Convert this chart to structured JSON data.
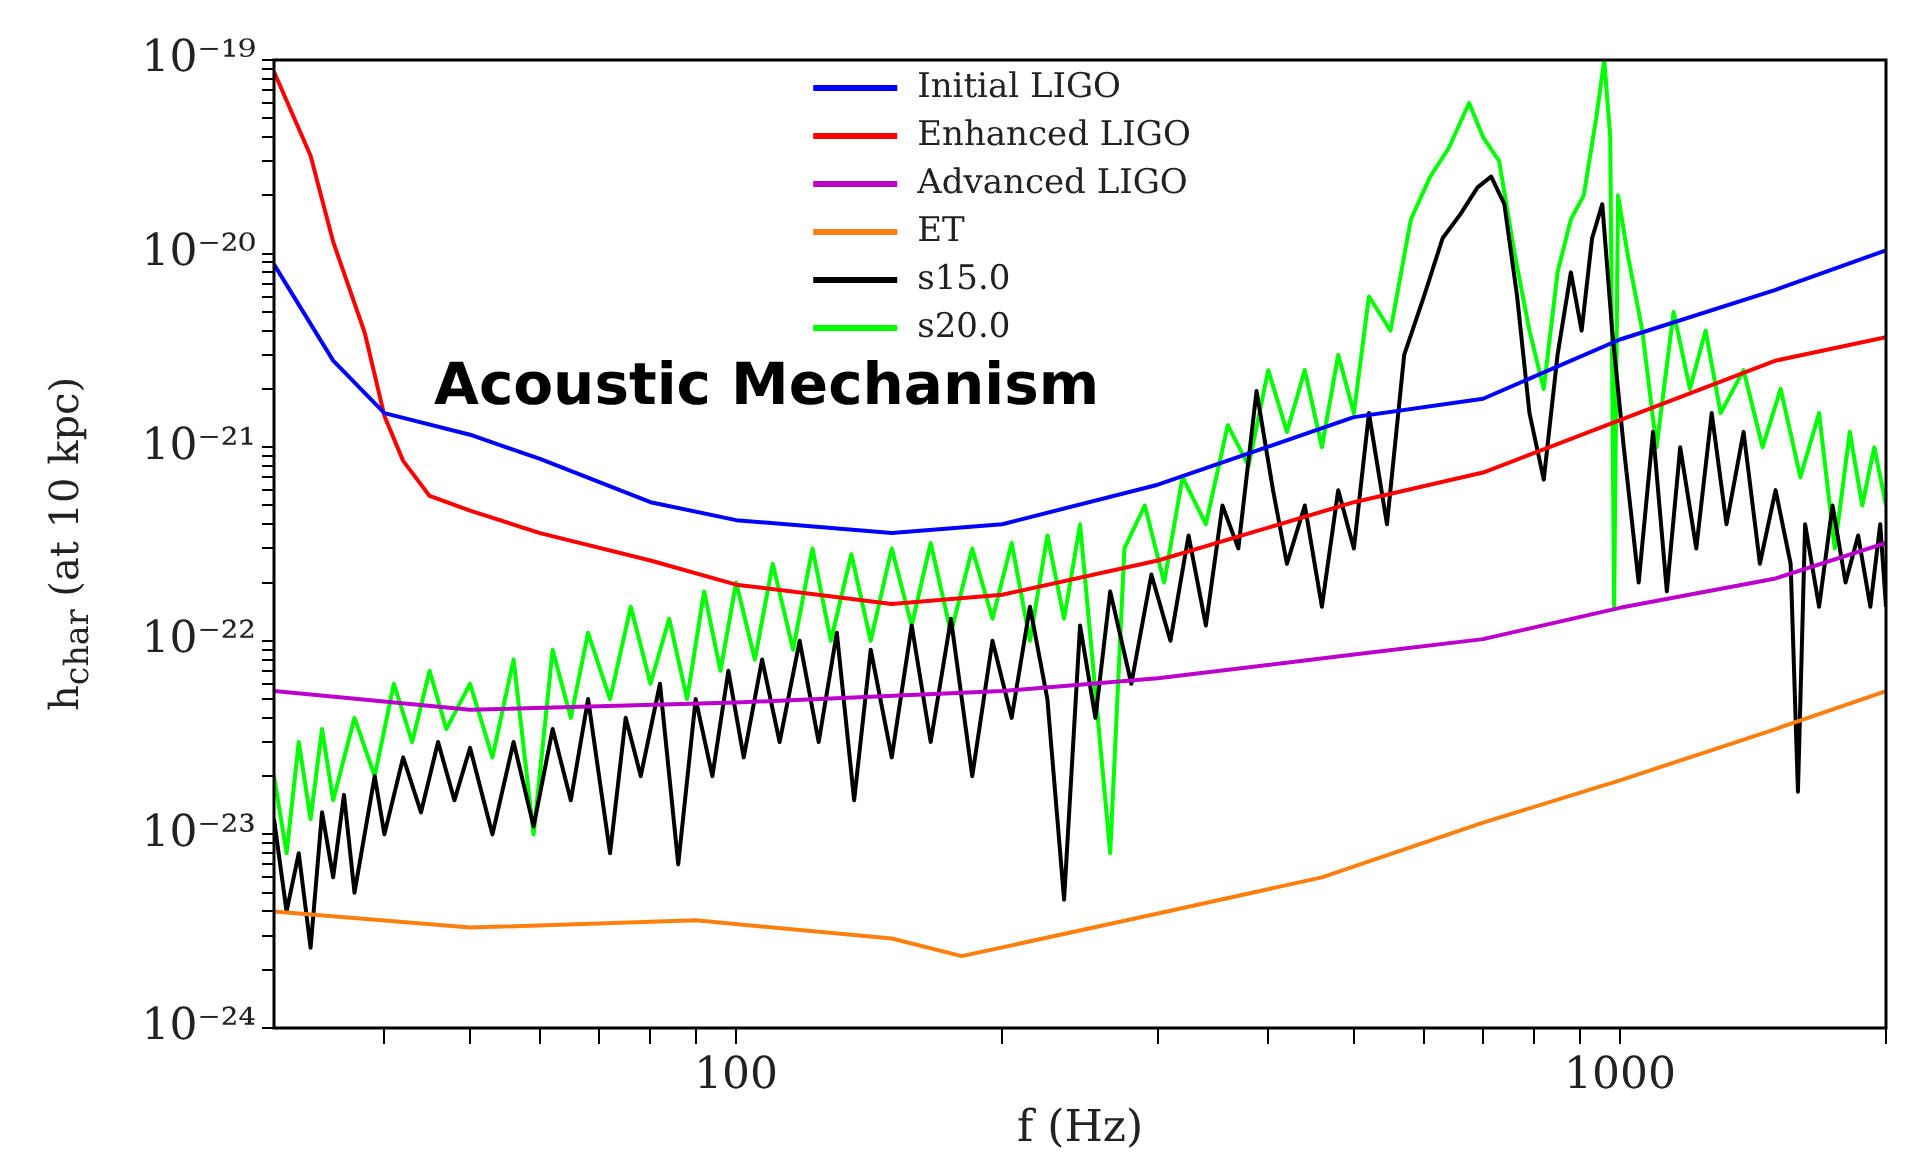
{
  "chart_data": {
    "type": "line",
    "xlabel": "f (Hz)",
    "ylabel": "h$_{char}$  (at 10 kpc)",
    "annotations": [
      "Acoustic Mechanism"
    ],
    "log": "xy",
    "grid": false,
    "legend": "top",
    "marker": "none",
    "line_style": "solid",
    "xlim": [
      30,
      2000
    ],
    "ylim": [
      1e-24,
      1e-19
    ],
    "xticks": [
      {
        "value": 40,
        "label": null
      },
      {
        "value": 50,
        "label": null
      },
      {
        "value": 60,
        "label": null
      },
      {
        "value": 70,
        "label": null
      },
      {
        "value": 80,
        "label": null
      },
      {
        "value": 90,
        "label": null
      },
      100,
      {
        "value": 200,
        "label": null
      },
      {
        "value": 300,
        "label": null
      },
      {
        "value": 400,
        "label": null
      },
      {
        "value": 500,
        "label": null
      },
      {
        "value": 600,
        "label": null
      },
      {
        "value": 700,
        "label": null
      },
      {
        "value": 800,
        "label": null
      },
      {
        "value": 900,
        "label": null
      },
      1000,
      {
        "value": 2000,
        "label": null
      }
    ],
    "yticks": [
      {
        "value": 1e-24,
        "label": "10⁻²⁴"
      },
      {
        "value": 2e-24,
        "label": null
      },
      {
        "value": 3e-24,
        "label": null
      },
      {
        "value": 4e-24,
        "label": null
      },
      {
        "value": 5e-24,
        "label": null
      },
      {
        "value": 6e-24,
        "label": null
      },
      {
        "value": 7e-24,
        "label": null
      },
      {
        "value": 8e-24,
        "label": null
      },
      {
        "value": 9e-24,
        "label": null
      },
      {
        "value": 1e-23,
        "label": "10⁻²³"
      },
      {
        "value": 2e-23,
        "label": null
      },
      {
        "value": 3e-23,
        "label": null
      },
      {
        "value": 4e-23,
        "label": null
      },
      {
        "value": 5e-23,
        "label": null
      },
      {
        "value": 6e-23,
        "label": null
      },
      {
        "value": 7e-23,
        "label": null
      },
      {
        "value": 8e-23,
        "label": null
      },
      {
        "value": 9e-23,
        "label": null
      },
      {
        "value": 1e-22,
        "label": "10⁻²²"
      },
      {
        "value": 2e-22,
        "label": null
      },
      {
        "value": 3e-22,
        "label": null
      },
      {
        "value": 4e-22,
        "label": null
      },
      {
        "value": 5e-22,
        "label": null
      },
      {
        "value": 6e-22,
        "label": null
      },
      {
        "value": 7e-22,
        "label": null
      },
      {
        "value": 8e-22,
        "label": null
      },
      {
        "value": 9e-22,
        "label": null
      },
      {
        "value": 1e-21,
        "label": "10⁻²¹"
      },
      {
        "value": 2e-21,
        "label": null
      },
      {
        "value": 3e-21,
        "label": null
      },
      {
        "value": 4e-21,
        "label": null
      },
      {
        "value": 5e-21,
        "label": null
      },
      {
        "value": 6e-21,
        "label": null
      },
      {
        "value": 7e-21,
        "label": null
      },
      {
        "value": 8e-21,
        "label": null
      },
      {
        "value": 9e-21,
        "label": null
      },
      {
        "value": 1e-20,
        "label": "10⁻²⁰"
      },
      {
        "value": 2e-20,
        "label": null
      },
      {
        "value": 3e-20,
        "label": null
      },
      {
        "value": 4e-20,
        "label": null
      },
      {
        "value": 5e-20,
        "label": null
      },
      {
        "value": 6e-20,
        "label": null
      },
      {
        "value": 7e-20,
        "label": null
      },
      {
        "value": 8e-20,
        "label": null
      },
      {
        "value": 9e-20,
        "label": null
      },
      {
        "value": 1e-19,
        "label": "10⁻¹⁹"
      }
    ],
    "series": [
      {
        "name": "Initial LIGO",
        "color": "#0000ff",
        "x": [
          30,
          35,
          40,
          50,
          60,
          80,
          100,
          150,
          200,
          300,
          500,
          700,
          1000,
          1500,
          2000
        ],
        "values": [
          8.8e-21,
          2.8e-21,
          1.5e-21,
          1.16e-21,
          8.7e-22,
          5.2e-22,
          4.2e-22,
          3.6e-22,
          4e-22,
          6.4e-22,
          1.43e-21,
          1.78e-21,
          3.6e-21,
          6.5e-21,
          1.04e-20
        ]
      },
      {
        "name": "Enhanced LIGO",
        "color": "#ff0000",
        "x": [
          30,
          33,
          35,
          38,
          40,
          42,
          45,
          50,
          60,
          80,
          100,
          150,
          200,
          300,
          500,
          700,
          1000,
          1500,
          2000
        ],
        "values": [
          8.7e-20,
          3.2e-20,
          1.15e-20,
          3.9e-21,
          1.45e-21,
          8.5e-22,
          5.6e-22,
          4.7e-22,
          3.6e-22,
          2.6e-22,
          1.95e-22,
          1.55e-22,
          1.73e-22,
          2.6e-22,
          5.2e-22,
          7.4e-22,
          1.38e-21,
          2.8e-21,
          3.7e-21
        ]
      },
      {
        "name": "Advanced LIGO",
        "color": "#bb00cc",
        "x": [
          30,
          50,
          100,
          200,
          300,
          500,
          700,
          1000,
          1500,
          2000
        ],
        "values": [
          5.5e-23,
          4.4e-23,
          4.8e-23,
          5.5e-23,
          6.4e-23,
          8.5e-23,
          1.02e-22,
          1.48e-22,
          2.1e-22,
          3.2e-22
        ]
      },
      {
        "name": "ET",
        "color": "#ff7f0e",
        "x": [
          30,
          50,
          90,
          150,
          180,
          300,
          460,
          700,
          1000,
          1500,
          2000
        ],
        "values": [
          4e-24,
          3.3e-24,
          3.6e-24,
          2.9e-24,
          2.35e-24,
          3.9e-24,
          6e-24,
          1.15e-23,
          1.9e-23,
          3.5e-23,
          5.5e-23
        ]
      },
      {
        "name": "s15.0",
        "color": "#000000",
        "x": [
          30,
          31,
          32,
          33,
          34,
          35,
          36,
          37,
          39,
          40,
          42,
          44,
          46,
          48,
          50,
          53,
          56,
          59,
          62,
          65,
          68,
          72,
          75,
          78,
          82,
          86,
          90,
          94,
          98,
          102,
          107,
          112,
          118,
          124,
          130,
          136,
          142,
          150,
          158,
          166,
          175,
          185,
          195,
          205,
          215,
          225,
          235,
          245,
          255,
          265,
          280,
          295,
          310,
          325,
          340,
          355,
          370,
          388,
          405,
          420,
          440,
          460,
          480,
          500,
          520,
          545,
          570,
          600,
          630,
          660,
          690,
          715,
          740,
          765,
          790,
          820,
          850,
          880,
          905,
          930,
          955,
          980,
          1010,
          1050,
          1090,
          1130,
          1170,
          1220,
          1270,
          1320,
          1380,
          1440,
          1500,
          1560,
          1590,
          1620,
          1680,
          1740,
          1800,
          1860,
          1920,
          1970,
          2000
        ],
        "values": [
          1.2e-23,
          4e-24,
          8e-24,
          2.6e-24,
          1.3e-23,
          6e-24,
          1.6e-23,
          5e-24,
          2e-23,
          1e-23,
          2.5e-23,
          1.3e-23,
          3e-23,
          1.5e-23,
          2.8e-23,
          1e-23,
          3e-23,
          1.1e-23,
          3.5e-23,
          1.5e-23,
          5e-23,
          8e-24,
          4e-23,
          2e-23,
          6e-23,
          7e-24,
          5e-23,
          2e-23,
          7e-23,
          2.5e-23,
          8e-23,
          3e-23,
          1e-22,
          3e-23,
          1.1e-22,
          1.5e-23,
          9e-23,
          2.5e-23,
          1.2e-22,
          3e-23,
          1.3e-22,
          2e-23,
          1e-22,
          4e-23,
          1.5e-22,
          5e-23,
          4.6e-24,
          1.2e-22,
          4e-23,
          1.8e-22,
          6e-23,
          2.2e-22,
          1e-22,
          3.5e-22,
          1.2e-22,
          5e-22,
          3e-22,
          1.95e-21,
          6e-22,
          2.5e-22,
          5e-22,
          1.5e-22,
          6e-22,
          3e-22,
          1.5e-21,
          4e-22,
          3e-21,
          6e-21,
          1.2e-20,
          1.6e-20,
          2.2e-20,
          2.5e-20,
          1.8e-20,
          6e-21,
          1.5e-21,
          6.8e-22,
          3e-21,
          8e-21,
          4e-21,
          1.2e-20,
          1.8e-20,
          4e-21,
          1e-21,
          2e-22,
          1.2e-21,
          1.8e-22,
          1e-21,
          3e-22,
          1.5e-21,
          4e-22,
          1.2e-21,
          2.5e-22,
          6e-22,
          2.5e-22,
          1.66e-23,
          4e-22,
          1.5e-22,
          5e-22,
          2e-22,
          3.5e-22,
          1.5e-22,
          4e-22,
          1.5e-22
        ]
      },
      {
        "name": "s20.0",
        "color": "#00ff00",
        "x": [
          30,
          31,
          32,
          33,
          34,
          35,
          37,
          39,
          41,
          43,
          45,
          47,
          50,
          53,
          56,
          59,
          62,
          65,
          68,
          72,
          76,
          80,
          84,
          88,
          92,
          96,
          100,
          105,
          110,
          116,
          122,
          128,
          135,
          142,
          150,
          158,
          166,
          175,
          185,
          195,
          205,
          215,
          225,
          235,
          245,
          265,
          275,
          290,
          305,
          320,
          340,
          360,
          380,
          400,
          420,
          440,
          460,
          480,
          500,
          520,
          550,
          580,
          610,
          640,
          675,
          700,
          730,
          760,
          790,
          820,
          850,
          880,
          910,
          940,
          960,
          975,
          985,
          995,
          1020,
          1060,
          1100,
          1150,
          1200,
          1250,
          1300,
          1380,
          1450,
          1520,
          1600,
          1680,
          1750,
          1820,
          1880,
          1940,
          2000
        ],
        "values": [
          2e-23,
          8e-24,
          3e-23,
          1.2e-23,
          3.5e-23,
          1.5e-23,
          4e-23,
          2e-23,
          6e-23,
          3e-23,
          7e-23,
          3.5e-23,
          6e-23,
          2.5e-23,
          8e-23,
          1e-23,
          9e-23,
          4e-23,
          1.1e-22,
          5e-23,
          1.5e-22,
          6e-23,
          1.3e-22,
          5e-23,
          1.8e-22,
          7e-23,
          2e-22,
          8e-23,
          2.5e-22,
          9e-23,
          3e-22,
          1e-22,
          2.8e-22,
          1e-22,
          3e-22,
          1.2e-22,
          3.2e-22,
          1.1e-22,
          3e-22,
          1.3e-22,
          3.2e-22,
          1e-22,
          3.5e-22,
          1.3e-22,
          4e-22,
          8e-24,
          3e-22,
          5e-22,
          2e-22,
          7e-22,
          4e-22,
          1.3e-21,
          8e-22,
          2.5e-21,
          1.2e-21,
          2.5e-21,
          1e-21,
          3e-21,
          1.5e-21,
          6e-21,
          4e-21,
          1.5e-20,
          2.5e-20,
          3.5e-20,
          6e-20,
          4e-20,
          3e-20,
          1e-20,
          4e-21,
          2e-21,
          8e-21,
          1.5e-20,
          2e-20,
          5e-20,
          1e-19,
          4e-20,
          1.5e-22,
          2e-20,
          1e-20,
          4e-21,
          1e-21,
          5e-21,
          2e-21,
          4e-21,
          1.5e-21,
          2.5e-21,
          1e-21,
          2e-21,
          7e-22,
          1.5e-21,
          3e-22,
          1.2e-21,
          5e-22,
          1e-21,
          5e-22
        ]
      }
    ]
  }
}
